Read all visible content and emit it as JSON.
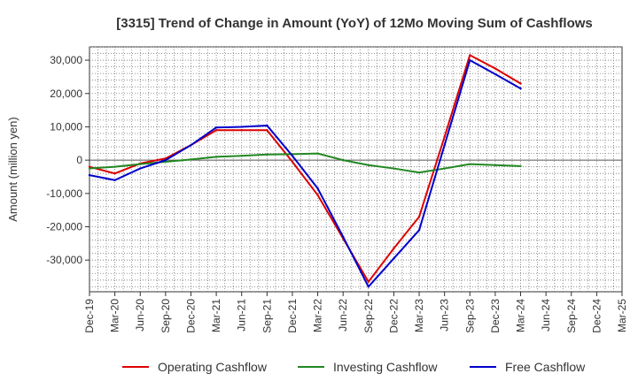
{
  "chart_data": {
    "type": "line",
    "title": "[3315]  Trend of Change in Amount (YoY) of 12Mo Moving Sum of Cashflows",
    "xlabel": "",
    "ylabel": "Amount (million yen)",
    "ylim": [
      -39500,
      34000
    ],
    "y_ticks": [
      30000,
      20000,
      10000,
      0,
      -10000,
      -20000,
      -30000
    ],
    "y_tick_labels": [
      "30,000",
      "20,000",
      "10,000",
      "0",
      "-10,000",
      "-20,000",
      "-30,000"
    ],
    "grid": true,
    "legend_position": "bottom",
    "categories": [
      "Dec-19",
      "Mar-20",
      "Jun-20",
      "Sep-20",
      "Dec-20",
      "Mar-21",
      "Jun-21",
      "Sep-21",
      "Dec-21",
      "Mar-22",
      "Jun-22",
      "Sep-22",
      "Dec-22",
      "Mar-23",
      "Jun-23",
      "Sep-23",
      "Dec-23",
      "Mar-24",
      "Jun-24",
      "Sep-24",
      "Dec-24",
      "Mar-25"
    ],
    "series": [
      {
        "name": "Operating Cashflow",
        "color": "#dd0000",
        "values": [
          -2000,
          -4000,
          -1000,
          500,
          4500,
          9000,
          9000,
          9000,
          -500,
          -10500,
          -23500,
          -36500,
          -26500,
          -17000,
          7000,
          31500,
          27500,
          23000,
          null,
          null,
          null,
          null
        ]
      },
      {
        "name": "Investing Cashflow",
        "color": "#228822",
        "values": [
          -2500,
          -2000,
          -1200,
          -500,
          200,
          1000,
          1300,
          1700,
          1800,
          2000,
          0,
          -1500,
          -2500,
          -3700,
          -2500,
          -1200,
          -1500,
          -1800,
          null,
          null,
          null,
          null
        ]
      },
      {
        "name": "Free Cashflow",
        "color": "#0000cc",
        "values": [
          -4500,
          -6000,
          -2500,
          0,
          4500,
          9800,
          10000,
          10400,
          1300,
          -8500,
          -23000,
          -38000,
          -29500,
          -21000,
          4500,
          30000,
          25800,
          21500,
          null,
          null,
          null,
          null
        ]
      }
    ]
  }
}
